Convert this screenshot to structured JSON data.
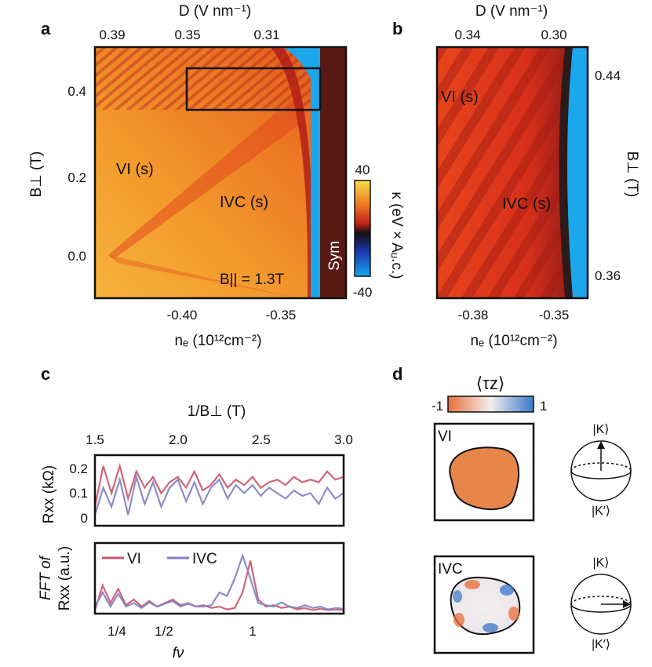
{
  "panels": {
    "a": "a",
    "b": "b",
    "c": "c",
    "d": "d"
  },
  "panel_a": {
    "top_axis_label": "D (V nm⁻¹)",
    "top_ticks": [
      "0.39",
      "0.35",
      "0.31"
    ],
    "left_axis_label": "B⊥ (T)",
    "left_ticks": [
      "0.4",
      "0.2",
      "0.0"
    ],
    "bottom_axis_label": "nₑ (10¹²cm⁻²)",
    "bottom_ticks": [
      "-0.40",
      "-0.35"
    ],
    "label_vi": "VI (s)",
    "label_ivc": "IVC (s)",
    "label_bpar": "B|| = 1.3T",
    "label_sym": "Sym",
    "colorbar_max": "40",
    "colorbar_min": "-40",
    "colorbar_label": "κ (eV × Aᵤ.c.)"
  },
  "panel_b": {
    "top_axis_label": "D (V nm⁻¹)",
    "top_ticks": [
      "0.34",
      "0.30"
    ],
    "right_axis_label": "B⊥ (T)",
    "right_ticks": [
      "0.44",
      "0.36"
    ],
    "bottom_axis_label": "nₑ (10¹²cm⁻²)",
    "bottom_ticks": [
      "-0.38",
      "-0.35"
    ],
    "label_vi": "VI (s)",
    "label_ivc": "IVC (s)"
  },
  "panel_c": {
    "top_axis_label": "1/B⊥ (T)",
    "top_ticks": [
      "1.5",
      "2.0",
      "2.5",
      "3.0"
    ],
    "upper_ylabel": "Rxx (kΩ)",
    "upper_ticks": [
      "0.2",
      "0.1",
      "0"
    ],
    "lower_ylabel_1": "FFT of",
    "lower_ylabel_2": "Rxx (a.u.)",
    "lower_xlabel": "fν",
    "lower_ticks": [
      "1/4",
      "1/2",
      "1"
    ],
    "legend_vi": "VI",
    "legend_ivc": "IVC"
  },
  "panel_d": {
    "colorbar_title": "⟨τz⟩",
    "colorbar_min": "-1",
    "colorbar_max": "1",
    "box_vi": "VI",
    "box_ivc": "IVC",
    "ket_k": "|K⟩",
    "ket_kp": "|K′⟩"
  },
  "colors": {
    "vi": "#c9556a",
    "ivc": "#8080c4",
    "accent_blue": "#1aa7ec"
  },
  "chart_data": [
    {
      "type": "line",
      "panel": "c-upper",
      "xlabel": "1/B⊥ (T)",
      "ylabel": "Rxx (kΩ)",
      "xlim": [
        1.5,
        3.0
      ],
      "ylim": [
        -0.02,
        0.24
      ],
      "series": [
        {
          "name": "VI",
          "x": [
            1.5,
            1.55,
            1.6,
            1.65,
            1.7,
            1.75,
            1.8,
            1.85,
            1.9,
            1.95,
            2.0,
            2.05,
            2.1,
            2.15,
            2.2,
            2.25,
            2.3,
            2.35,
            2.4,
            2.45,
            2.5,
            2.55,
            2.6,
            2.65,
            2.7,
            2.75,
            2.8,
            2.85,
            2.9,
            2.95,
            3.0
          ],
          "values": [
            0.05,
            0.2,
            0.1,
            0.2,
            0.08,
            0.18,
            0.12,
            0.16,
            0.1,
            0.14,
            0.16,
            0.12,
            0.18,
            0.11,
            0.13,
            0.17,
            0.12,
            0.15,
            0.13,
            0.16,
            0.12,
            0.14,
            0.15,
            0.13,
            0.16,
            0.14,
            0.15,
            0.14,
            0.18,
            0.15,
            0.16
          ]
        },
        {
          "name": "IVC",
          "x": [
            1.5,
            1.55,
            1.6,
            1.65,
            1.7,
            1.75,
            1.8,
            1.85,
            1.9,
            1.95,
            2.0,
            2.05,
            2.1,
            2.15,
            2.2,
            2.25,
            2.3,
            2.35,
            2.4,
            2.45,
            2.5,
            2.55,
            2.6,
            2.65,
            2.7,
            2.75,
            2.8,
            2.85,
            2.9,
            2.95,
            3.0
          ],
          "values": [
            0.02,
            0.12,
            0.05,
            0.15,
            0.02,
            0.16,
            0.06,
            0.14,
            0.05,
            0.12,
            0.15,
            0.07,
            0.14,
            0.06,
            0.12,
            0.15,
            0.08,
            0.13,
            0.1,
            0.13,
            0.09,
            0.12,
            0.1,
            0.08,
            0.11,
            0.09,
            0.1,
            0.06,
            0.12,
            0.08,
            0.1
          ]
        }
      ]
    },
    {
      "type": "line",
      "panel": "c-lower",
      "xlabel": "fν",
      "ylabel": "FFT of Rxx (a.u.)",
      "xlim": [
        0.0,
        1.6
      ],
      "ylim": [
        0,
        1.0
      ],
      "series": [
        {
          "name": "VI",
          "x": [
            0.0,
            0.05,
            0.1,
            0.15,
            0.2,
            0.25,
            0.3,
            0.35,
            0.4,
            0.45,
            0.5,
            0.55,
            0.6,
            0.65,
            0.7,
            0.75,
            0.8,
            0.85,
            0.9,
            0.95,
            1.0,
            1.05,
            1.1,
            1.15,
            1.2,
            1.25,
            1.3,
            1.35,
            1.4,
            1.45,
            1.5,
            1.55,
            1.6
          ],
          "values": [
            0.05,
            0.4,
            0.15,
            0.35,
            0.12,
            0.2,
            0.1,
            0.18,
            0.1,
            0.15,
            0.2,
            0.12,
            0.15,
            0.1,
            0.12,
            0.08,
            0.1,
            0.06,
            0.08,
            0.3,
            0.75,
            0.2,
            0.1,
            0.12,
            0.08,
            0.1,
            0.06,
            0.08,
            0.05,
            0.07,
            0.05,
            0.06,
            0.05
          ]
        },
        {
          "name": "IVC",
          "x": [
            0.0,
            0.05,
            0.1,
            0.15,
            0.2,
            0.25,
            0.3,
            0.35,
            0.4,
            0.45,
            0.5,
            0.55,
            0.6,
            0.65,
            0.7,
            0.75,
            0.8,
            0.85,
            0.9,
            0.95,
            1.0,
            1.05,
            1.1,
            1.15,
            1.2,
            1.25,
            1.3,
            1.35,
            1.4,
            1.45,
            1.5,
            1.55,
            1.6
          ],
          "values": [
            0.1,
            0.3,
            0.1,
            0.28,
            0.1,
            0.15,
            0.08,
            0.16,
            0.1,
            0.14,
            0.18,
            0.1,
            0.14,
            0.1,
            0.1,
            0.12,
            0.3,
            0.25,
            0.5,
            0.82,
            0.5,
            0.15,
            0.12,
            0.1,
            0.16,
            0.1,
            0.08,
            0.12,
            0.08,
            0.1,
            0.06,
            0.08,
            0.07
          ]
        }
      ]
    }
  ]
}
